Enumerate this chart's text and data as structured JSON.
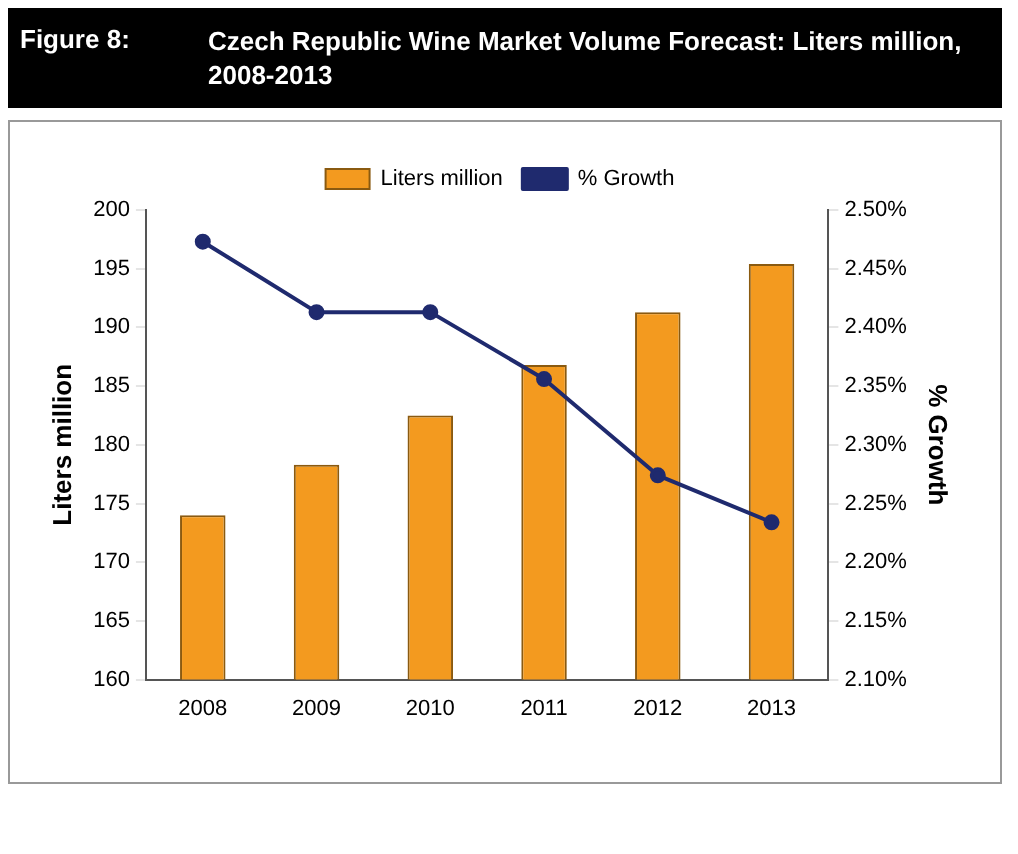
{
  "chart_data": {
    "type": "bar",
    "title": "Czech Republic Wine Market Volume Forecast: Liters million, 2008-2013",
    "annotations": [
      "Figure 8:"
    ],
    "ylabel": "Liters million",
    "y2label": "% Growth",
    "categories": [
      "2008",
      "2009",
      "2010",
      "2011",
      "2012",
      "2013"
    ],
    "series": [
      {
        "name": "Liters million",
        "color": "#f39a1f",
        "values": [
          174.0,
          178.3,
          182.5,
          186.8,
          191.3,
          195.4
        ]
      },
      {
        "name": "% Growth",
        "type": "line",
        "axis": "y2",
        "color": "#1f2a6e",
        "marker": "circle",
        "values": [
          2.473,
          2.413,
          2.413,
          2.356,
          2.274,
          2.234
        ]
      }
    ],
    "ylim": [
      160,
      200
    ],
    "yticks": [
      160,
      165,
      170,
      175,
      180,
      185,
      190,
      195,
      200
    ],
    "y2lim": [
      2.1,
      2.5
    ],
    "y2ticks": [
      {
        "value": 2.1,
        "label": "2.10%"
      },
      {
        "value": 2.15,
        "label": "2.15%"
      },
      {
        "value": 2.2,
        "label": "2.20%"
      },
      {
        "value": 2.25,
        "label": "2.25%"
      },
      {
        "value": 2.3,
        "label": "2.30%"
      },
      {
        "value": 2.35,
        "label": "2.35%"
      },
      {
        "value": 2.4,
        "label": "2.40%"
      },
      {
        "value": 2.45,
        "label": "2.45%"
      },
      {
        "value": 2.5,
        "label": "2.50%"
      }
    ],
    "legend": "top",
    "grid": false
  }
}
